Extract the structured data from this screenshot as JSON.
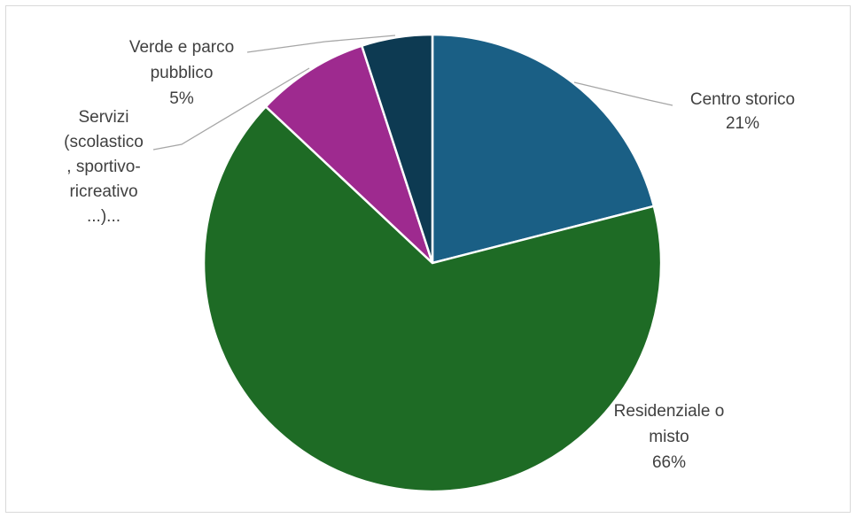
{
  "chart_data": {
    "type": "pie",
    "title": "",
    "slices": [
      {
        "name": "Centro storico",
        "value": 21,
        "label_lines": [
          "Centro storico",
          "21%"
        ],
        "color": "#1a5f85"
      },
      {
        "name": "Residenziale o misto",
        "value": 66,
        "label_lines": [
          "Residenziale o",
          "misto",
          "66%"
        ],
        "color": "#1e6b25"
      },
      {
        "name": "Servizi (scolastico, sportivo-ricreativo ...)...",
        "value": 8,
        "label_lines": [
          "Servizi",
          "(scolastico",
          ", sportivo-",
          "ricreativo",
          "...)..."
        ],
        "color": "#9e2a8f"
      },
      {
        "name": "Verde e parco pubblico",
        "value": 5,
        "label_lines": [
          "Verde e parco",
          "pubblico",
          "5%"
        ],
        "color": "#0d3a52"
      }
    ],
    "legend": "none"
  }
}
